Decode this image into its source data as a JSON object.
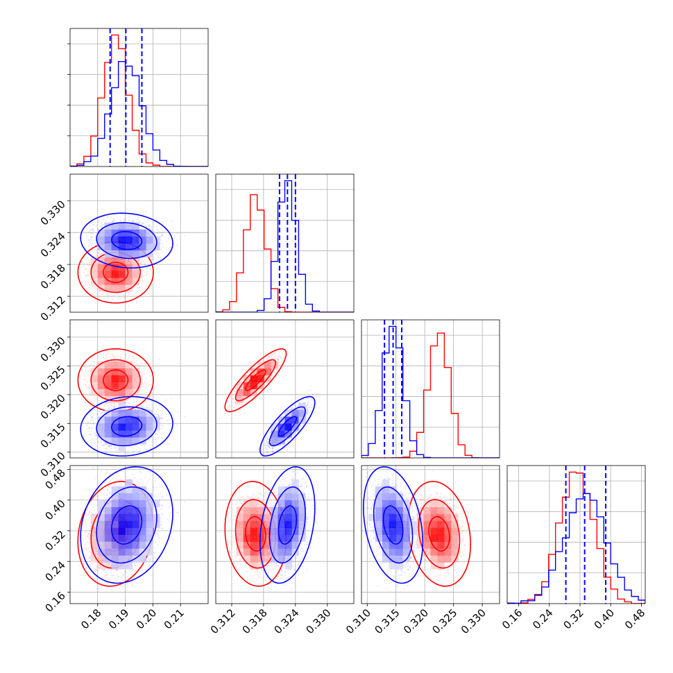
{
  "chart_data": {
    "type": "scatter",
    "subtype": "corner-plot",
    "title": "",
    "n_params": 4,
    "colors": {
      "A": "#ff0000",
      "B": "#0000ff"
    },
    "grid": true,
    "params": [
      {
        "range": [
          0.17,
          0.22
        ],
        "ticks": [
          0.18,
          0.19,
          0.2,
          0.21
        ],
        "tick_labels": [
          "0.18",
          "0.19",
          "0.20",
          "0.21"
        ]
      },
      {
        "range": [
          0.309,
          0.335
        ],
        "ticks": [
          0.312,
          0.318,
          0.324,
          0.33
        ],
        "tick_labels": [
          "0.312",
          "0.318",
          "0.324",
          "0.330"
        ]
      },
      {
        "range": [
          0.309,
          0.333
        ],
        "ticks": [
          0.31,
          0.315,
          0.32,
          0.325,
          0.33
        ],
        "tick_labels": [
          "0.310",
          "0.315",
          "0.320",
          "0.325",
          "0.330"
        ]
      },
      {
        "range": [
          0.13,
          0.49
        ],
        "ticks": [
          0.16,
          0.24,
          0.32,
          0.4,
          0.48
        ],
        "tick_labels": [
          "0.16",
          "0.24",
          "0.32",
          "0.40",
          "0.48"
        ]
      }
    ],
    "series": [
      {
        "key": "A",
        "color": "#ff0000",
        "mean": [
          0.1865,
          0.3165,
          0.3225,
          0.312
        ],
        "sd": [
          0.0045,
          0.0019,
          0.0018,
          0.045
        ],
        "corr": {
          "0-1": 0.0,
          "0-2": 0.0,
          "0-3": 0.15,
          "1-2": 0.85,
          "1-3": -0.1,
          "2-3": -0.2
        }
      },
      {
        "key": "B",
        "color": "#0000ff",
        "mean": [
          0.1905,
          0.3225,
          0.3145,
          0.335
        ],
        "sd": [
          0.0055,
          0.0017,
          0.0017,
          0.05
        ],
        "corr": {
          "0-1": -0.1,
          "0-2": 0.1,
          "0-3": 0.2,
          "1-2": 0.8,
          "1-3": 0.3,
          "2-3": -0.3
        }
      }
    ],
    "quantile_lines": {
      "color": "#0000ff",
      "values": [
        [
          0.1845,
          0.1902,
          0.196
        ],
        [
          0.321,
          0.3225,
          0.324
        ],
        [
          0.313,
          0.3145,
          0.316
        ],
        [
          0.283,
          0.332,
          0.387
        ]
      ]
    },
    "density_levels": [
      0.39,
      0.86,
      0.99
    ]
  }
}
